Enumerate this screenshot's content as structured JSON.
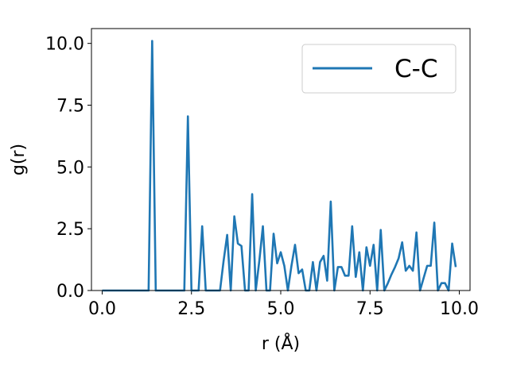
{
  "chart_data": {
    "type": "line",
    "title": "",
    "xlabel": "r (Å)",
    "ylabel": "g(r)",
    "xlim": [
      -0.3,
      10.3
    ],
    "ylim": [
      0,
      10.6
    ],
    "xticks": [
      0.0,
      2.5,
      5.0,
      7.5,
      10.0
    ],
    "xtick_labels": [
      "0.0",
      "2.5",
      "5.0",
      "7.5",
      "10.0"
    ],
    "yticks": [
      0.0,
      2.5,
      5.0,
      7.5,
      10.0
    ],
    "ytick_labels": [
      "0.0",
      "2.5",
      "5.0",
      "7.5",
      "10.0"
    ],
    "grid": false,
    "legend_position": "top-right",
    "series": [
      {
        "name": "C-C",
        "color": "#1f77b4",
        "x": [
          0.0,
          0.1,
          0.2,
          0.3,
          0.4,
          0.5,
          0.6,
          0.7,
          0.8,
          0.9,
          1.0,
          1.1,
          1.2,
          1.3,
          1.4,
          1.5,
          1.6,
          1.7,
          1.8,
          1.9,
          2.0,
          2.1,
          2.2,
          2.3,
          2.4,
          2.5,
          2.6,
          2.7,
          2.8,
          2.9,
          3.0,
          3.1,
          3.2,
          3.3,
          3.4,
          3.5,
          3.6,
          3.7,
          3.8,
          3.9,
          4.0,
          4.1,
          4.2,
          4.3,
          4.4,
          4.5,
          4.6,
          4.7,
          4.8,
          4.9,
          5.0,
          5.1,
          5.2,
          5.3,
          5.4,
          5.5,
          5.6,
          5.7,
          5.8,
          5.9,
          6.0,
          6.1,
          6.2,
          6.3,
          6.4,
          6.5,
          6.6,
          6.7,
          6.8,
          6.9,
          7.0,
          7.1,
          7.2,
          7.3,
          7.4,
          7.5,
          7.6,
          7.7,
          7.8,
          7.9,
          8.0,
          8.1,
          8.2,
          8.3,
          8.4,
          8.5,
          8.6,
          8.7,
          8.8,
          8.9,
          9.0,
          9.1,
          9.2,
          9.3,
          9.4,
          9.5,
          9.6,
          9.7,
          9.8,
          9.9
        ],
        "y": [
          0,
          0,
          0,
          0,
          0,
          0,
          0,
          0,
          0,
          0,
          0,
          0,
          0,
          0,
          10.1,
          0,
          0,
          0,
          0,
          0,
          0,
          0,
          0,
          0,
          7.05,
          0,
          0,
          0,
          2.6,
          0,
          0,
          0,
          0,
          0,
          1.2,
          2.25,
          0,
          3.0,
          1.9,
          1.8,
          0,
          0,
          3.9,
          0,
          1.2,
          2.6,
          0,
          0,
          2.3,
          1.1,
          1.55,
          1.0,
          0,
          1.0,
          1.85,
          0.7,
          0.85,
          0,
          0,
          1.15,
          0,
          1.15,
          1.4,
          0.4,
          3.6,
          0,
          0.95,
          0.95,
          0.6,
          0.6,
          2.6,
          0.55,
          1.55,
          0,
          1.75,
          1.0,
          1.85,
          0,
          2.45,
          0,
          0.3,
          0.65,
          0.95,
          1.3,
          1.95,
          0.8,
          1.0,
          0.8,
          2.35,
          0,
          0.5,
          1.0,
          1.0,
          2.75,
          0,
          0.3,
          0.3,
          0,
          1.9,
          0.95
        ]
      }
    ]
  }
}
